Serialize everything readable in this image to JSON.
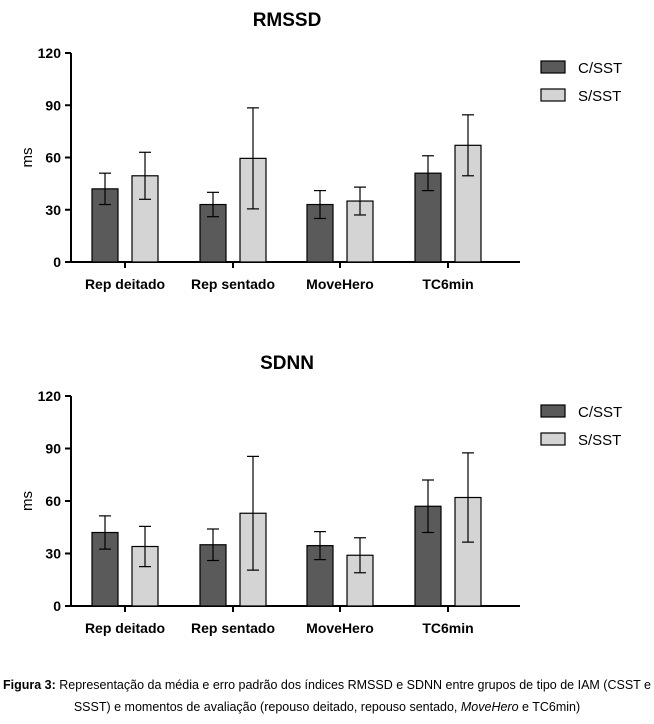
{
  "chart_data": [
    {
      "type": "bar",
      "title": "RMSSD",
      "ylabel": "ms",
      "xlabel": "",
      "ylim": [
        0,
        120
      ],
      "yticks": [
        0,
        30,
        60,
        90,
        120
      ],
      "categories": [
        "Rep deitado",
        "Rep sentado",
        "MoveHero",
        "TC6min"
      ],
      "series": [
        {
          "name": "C/SST",
          "color": "#5a5a5a",
          "values": [
            42,
            33,
            33,
            51
          ],
          "error": [
            9,
            7,
            8,
            10
          ]
        },
        {
          "name": "S/SST",
          "color": "#d4d4d4",
          "values": [
            49.5,
            59.5,
            35,
            67
          ],
          "error": [
            13.5,
            29,
            8,
            17.5
          ]
        }
      ],
      "legend": "top-right",
      "error_bars": "standard error"
    },
    {
      "type": "bar",
      "title": "SDNN",
      "ylabel": "ms",
      "xlabel": "",
      "ylim": [
        0,
        120
      ],
      "yticks": [
        0,
        30,
        60,
        90,
        120
      ],
      "categories": [
        "Rep deitado",
        "Rep sentado",
        "MoveHero",
        "TC6min"
      ],
      "series": [
        {
          "name": "C/SST",
          "color": "#5a5a5a",
          "values": [
            42,
            35,
            34.5,
            57
          ],
          "error": [
            9.5,
            9,
            8,
            15
          ]
        },
        {
          "name": "S/SST",
          "color": "#d4d4d4",
          "values": [
            34,
            53,
            29,
            62
          ],
          "error": [
            11.5,
            32.5,
            10,
            25.5
          ]
        }
      ],
      "legend": "top-right",
      "error_bars": "standard error"
    }
  ],
  "caption": {
    "label": "Figura 3:",
    "text_1": " Representação da média e erro padrão dos índices RMSSD e SDNN entre grupos de tipo de IAM (CSST e SSST) e momentos de avaliação (repouso deitado, repouso sentado, ",
    "italic": "MoveHero",
    "text_2": " e TC6min)"
  }
}
